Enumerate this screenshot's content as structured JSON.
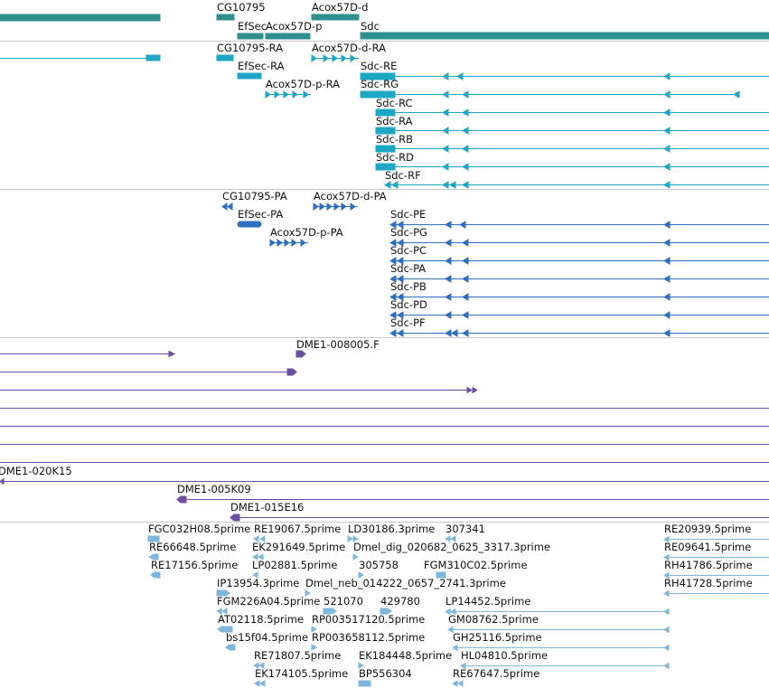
{
  "colors": {
    "gene": "#2f8f8c",
    "transcript": "#1ea7c4",
    "protein": "#2f6fbf",
    "clone": "#6a4fa0",
    "est": "#7fb6dd",
    "separator": "#c8c8c8"
  },
  "tracks": {
    "genes": {
      "labels": [
        "CG10795",
        "EfSec",
        "Acox57D-p",
        "Acox57D-d",
        "Sdc"
      ]
    },
    "transcripts": {
      "labels": [
        "CG10795-RA",
        "Acox57D-d-RA",
        "EfSec-RA",
        "Sdc-RE",
        "Acox57D-p-RA",
        "Sdc-RG",
        "Sdc-RC",
        "Sdc-RA",
        "Sdc-RB",
        "Sdc-RD",
        "Sdc-RF"
      ]
    },
    "proteins": {
      "labels": [
        "CG10795-PA",
        "Acox57D-d-PA",
        "EfSec-PA",
        "Sdc-PE",
        "Acox57D-p-PA",
        "Sdc-PG",
        "Sdc-PC",
        "Sdc-PA",
        "Sdc-PB",
        "Sdc-PD",
        "Sdc-PF"
      ]
    },
    "clones": {
      "labels": [
        "DME1-008005.F",
        "DME1-020K15",
        "DME1-005K09",
        "DME1-015E16"
      ]
    },
    "ests": {
      "labels": [
        "FGC032H08.5prime",
        "RE19067.5prime",
        "LD30186.3prime",
        "307341",
        "RE20939.5prime",
        "RE66648.5prime",
        "EK291649.5prime",
        "Dmel_dig_020682_0625_3317.3prime",
        "RE09641.5prime",
        "RE17156.5prime",
        "LP02881.5prime",
        "305758",
        "FGM310C02.5prime",
        "RH41786.5prime",
        "IP13954.3prime",
        "Dmel_neb_014222_0657_2741.3prime",
        "RH41728.5prime",
        "FGM226A04.5prime",
        "521070",
        "429780",
        "LP14452.5prime",
        "AT02118.5prime",
        "RP003517120.5prime",
        "GM08762.5prime",
        "bs15f04.5prime",
        "RP003658112.5prime",
        "GH25116.5prime",
        "RE71807.5prime",
        "EK184448.5prime",
        "HL04810.5prime",
        "EK174105.5prime",
        "BP556304",
        "RE67647.5prime"
      ]
    }
  }
}
